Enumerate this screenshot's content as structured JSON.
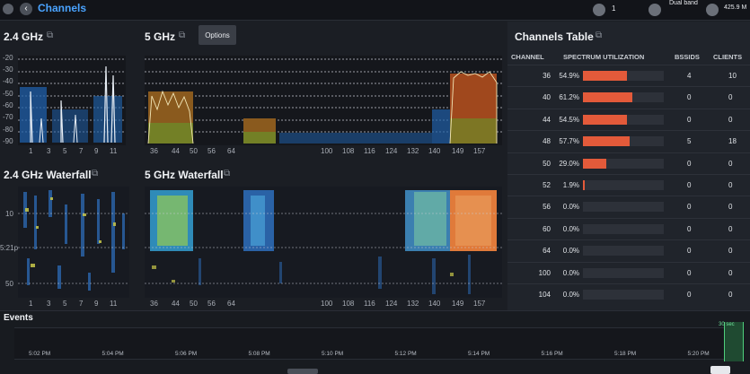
{
  "topbar": {
    "title": "Channels",
    "wifi_count": "1",
    "band": "Dual band",
    "speed": "425.9 M"
  },
  "panel24": {
    "title": "2.4 GHz",
    "yticks": [
      "-20",
      "-30",
      "-40",
      "-50",
      "-60",
      "-70",
      "-80",
      "-90"
    ],
    "xticks": [
      "1",
      "3",
      "5",
      "7",
      "9",
      "11"
    ]
  },
  "panel5": {
    "title": "5 GHz",
    "options_label": "Options",
    "xticks": [
      "36",
      "44",
      "50",
      "56",
      "64",
      "100",
      "108",
      "116",
      "124",
      "132",
      "140",
      "149",
      "157"
    ]
  },
  "waterfall24": {
    "title": "2.4 GHz Waterfall",
    "yticks": [
      "10",
      "5:21p",
      "50"
    ],
    "xticks": [
      "1",
      "3",
      "5",
      "7",
      "9",
      "11"
    ]
  },
  "waterfall5": {
    "title": "5 GHz Waterfall",
    "xticks": [
      "36",
      "44",
      "50",
      "56",
      "64",
      "100",
      "108",
      "116",
      "124",
      "132",
      "140",
      "149",
      "157"
    ]
  },
  "table": {
    "title": "Channels Table",
    "headers": {
      "channel": "CHANNEL",
      "util": "SPECTRUM UTILIZATION",
      "bssids": "BSSIDS",
      "clients": "CLIENTS"
    },
    "rows": [
      {
        "channel": "36",
        "util": "54.9%",
        "util_frac": 0.549,
        "bssids": "4",
        "clients": "10"
      },
      {
        "channel": "40",
        "util": "61.2%",
        "util_frac": 0.612,
        "bssids": "0",
        "clients": "0"
      },
      {
        "channel": "44",
        "util": "54.5%",
        "util_frac": 0.545,
        "bssids": "0",
        "clients": "0"
      },
      {
        "channel": "48",
        "util": "57.7%",
        "util_frac": 0.577,
        "bssids": "5",
        "clients": "18"
      },
      {
        "channel": "50",
        "util": "29.0%",
        "util_frac": 0.29,
        "bssids": "0",
        "clients": "0"
      },
      {
        "channel": "52",
        "util": "1.9%",
        "util_frac": 0.019,
        "bssids": "0",
        "clients": "0"
      },
      {
        "channel": "56",
        "util": "0.0%",
        "util_frac": 0.0,
        "bssids": "0",
        "clients": "0"
      },
      {
        "channel": "60",
        "util": "0.0%",
        "util_frac": 0.0,
        "bssids": "0",
        "clients": "0"
      },
      {
        "channel": "64",
        "util": "0.0%",
        "util_frac": 0.0,
        "bssids": "0",
        "clients": "0"
      },
      {
        "channel": "100",
        "util": "0.0%",
        "util_frac": 0.0,
        "bssids": "0",
        "clients": "0"
      },
      {
        "channel": "104",
        "util": "0.0%",
        "util_frac": 0.0,
        "bssids": "0",
        "clients": "0"
      }
    ]
  },
  "events": {
    "title": "Events",
    "interval": "30 sec",
    "ticks": [
      "5:02 PM",
      "5:04 PM",
      "5:06 PM",
      "5:08 PM",
      "5:10 PM",
      "5:12 PM",
      "5:14 PM",
      "5:16 PM",
      "5:18 PM",
      "5:20 PM"
    ]
  },
  "colors": {
    "accent": "#4aa3ff",
    "bar": "#e35a3a",
    "background": "#1b1e24",
    "panel": "#20242b"
  }
}
